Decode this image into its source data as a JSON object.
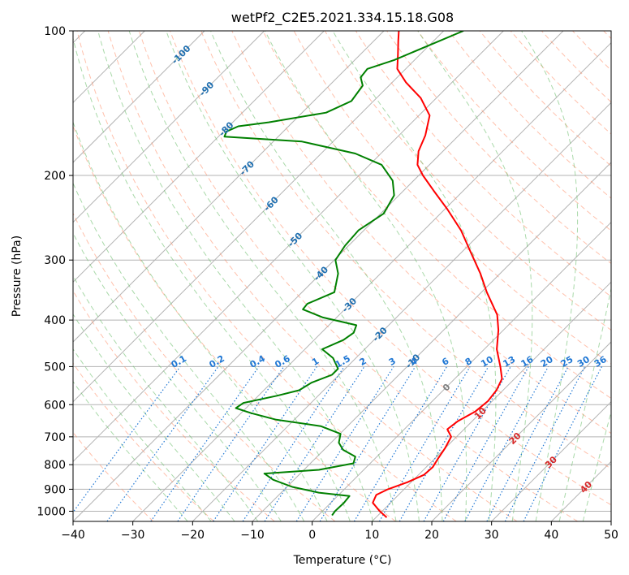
{
  "chart_data": {
    "type": "line",
    "subtype": "skew-t log-p diagram",
    "title": "wetPf2_C2E5.2021.334.15.18.G08",
    "xlabel": "Temperature (°C)",
    "ylabel": "Pressure (hPa)",
    "xlim": [
      -40,
      50
    ],
    "ylim": [
      1050,
      100
    ],
    "grid": true,
    "x_ticks": [
      -40,
      -30,
      -20,
      -10,
      0,
      10,
      20,
      30,
      40,
      50
    ],
    "x_tick_labels": [
      "−40",
      "−30",
      "−20",
      "−10",
      "0",
      "10",
      "20",
      "30",
      "40",
      "50"
    ],
    "y_ticks": [
      1000,
      900,
      800,
      700,
      600,
      500,
      400,
      300,
      200,
      100
    ],
    "y_tick_labels": [
      "1000",
      "900",
      "800",
      "700",
      "600",
      "500",
      "400",
      "300",
      "200",
      "100"
    ],
    "series": [
      {
        "name": "temperature",
        "color": "#ff0000",
        "points": [
          {
            "p": 1030,
            "t": 11.8
          },
          {
            "p": 1000,
            "t": 9.6
          },
          {
            "p": 960,
            "t": 7.0
          },
          {
            "p": 925,
            "t": 6.3
          },
          {
            "p": 900,
            "t": 7.3
          },
          {
            "p": 870,
            "t": 9.4
          },
          {
            "p": 840,
            "t": 10.9
          },
          {
            "p": 810,
            "t": 11.1
          },
          {
            "p": 780,
            "t": 10.6
          },
          {
            "p": 740,
            "t": 10.0
          },
          {
            "p": 700,
            "t": 9.1
          },
          {
            "p": 675,
            "t": 7.2
          },
          {
            "p": 650,
            "t": 7.6
          },
          {
            "p": 620,
            "t": 8.9
          },
          {
            "p": 590,
            "t": 9.3
          },
          {
            "p": 560,
            "t": 8.9
          },
          {
            "p": 530,
            "t": 7.9
          },
          {
            "p": 500,
            "t": 5.6
          },
          {
            "p": 460,
            "t": 2.1
          },
          {
            "p": 420,
            "t": -0.8
          },
          {
            "p": 390,
            "t": -3.6
          },
          {
            "p": 350,
            "t": -9.1
          },
          {
            "p": 320,
            "t": -13.3
          },
          {
            "p": 290,
            "t": -18.3
          },
          {
            "p": 260,
            "t": -23.8
          },
          {
            "p": 235,
            "t": -29.6
          },
          {
            "p": 215,
            "t": -35.0
          },
          {
            "p": 200,
            "t": -39.3
          },
          {
            "p": 190,
            "t": -42.0
          },
          {
            "p": 178,
            "t": -44.1
          },
          {
            "p": 165,
            "t": -45.6
          },
          {
            "p": 150,
            "t": -48.2
          },
          {
            "p": 138,
            "t": -52.6
          },
          {
            "p": 128,
            "t": -57.7
          },
          {
            "p": 120,
            "t": -61.4
          },
          {
            "p": 112,
            "t": -63.7
          },
          {
            "p": 105,
            "t": -65.9
          },
          {
            "p": 100,
            "t": -67.5
          }
        ]
      },
      {
        "name": "dewpoint",
        "color": "#008000",
        "points": [
          {
            "p": 1020,
            "t": 2.3
          },
          {
            "p": 1000,
            "t": 2.1
          },
          {
            "p": 960,
            "t": 2.2
          },
          {
            "p": 930,
            "t": 2.0
          },
          {
            "p": 915,
            "t": -3.7
          },
          {
            "p": 890,
            "t": -9.1
          },
          {
            "p": 860,
            "t": -13.5
          },
          {
            "p": 835,
            "t": -16.0
          },
          {
            "p": 820,
            "t": -7.5
          },
          {
            "p": 795,
            "t": -2.8
          },
          {
            "p": 770,
            "t": -3.6
          },
          {
            "p": 745,
            "t": -6.8
          },
          {
            "p": 720,
            "t": -8.7
          },
          {
            "p": 690,
            "t": -9.9
          },
          {
            "p": 665,
            "t": -14.5
          },
          {
            "p": 645,
            "t": -23.0
          },
          {
            "p": 625,
            "t": -28.3
          },
          {
            "p": 610,
            "t": -31.7
          },
          {
            "p": 595,
            "t": -31.3
          },
          {
            "p": 575,
            "t": -26.9
          },
          {
            "p": 560,
            "t": -24.1
          },
          {
            "p": 540,
            "t": -23.3
          },
          {
            "p": 520,
            "t": -21.2
          },
          {
            "p": 505,
            "t": -21.2
          },
          {
            "p": 480,
            "t": -23.8
          },
          {
            "p": 460,
            "t": -27.1
          },
          {
            "p": 440,
            "t": -25.1
          },
          {
            "p": 425,
            "t": -24.6
          },
          {
            "p": 410,
            "t": -25.4
          },
          {
            "p": 395,
            "t": -32.3
          },
          {
            "p": 380,
            "t": -37.0
          },
          {
            "p": 370,
            "t": -37.2
          },
          {
            "p": 350,
            "t": -34.6
          },
          {
            "p": 320,
            "t": -37.1
          },
          {
            "p": 300,
            "t": -39.8
          },
          {
            "p": 280,
            "t": -40.6
          },
          {
            "p": 260,
            "t": -40.9
          },
          {
            "p": 240,
            "t": -39.5
          },
          {
            "p": 220,
            "t": -40.8
          },
          {
            "p": 205,
            "t": -43.5
          },
          {
            "p": 190,
            "t": -48.0
          },
          {
            "p": 180,
            "t": -54.3
          },
          {
            "p": 170,
            "t": -65.2
          },
          {
            "p": 166,
            "t": -79.0
          },
          {
            "p": 162,
            "t": -79.5
          },
          {
            "p": 158,
            "t": -78.4
          },
          {
            "p": 155,
            "t": -74.0
          },
          {
            "p": 148,
            "t": -66.0
          },
          {
            "p": 140,
            "t": -63.7
          },
          {
            "p": 130,
            "t": -64.4
          },
          {
            "p": 125,
            "t": -66.1
          },
          {
            "p": 120,
            "t": -66.4
          },
          {
            "p": 115,
            "t": -63.4
          },
          {
            "p": 100,
            "t": -56.7
          }
        ]
      }
    ],
    "reference_lines": {
      "isotherm_color": "#b3b3b3",
      "dry_adiabat_color": "#ff8c66",
      "moist_adiabat_color": "#6fbf6f",
      "mixing_ratio_color": "#1f77d4"
    },
    "isotherm_labels": [
      {
        "value": -100,
        "p": 112
      },
      {
        "value": -90,
        "p": 132
      },
      {
        "value": -80,
        "p": 160
      },
      {
        "value": -70,
        "p": 193
      },
      {
        "value": -60,
        "p": 229
      },
      {
        "value": -50,
        "p": 272
      },
      {
        "value": -40,
        "p": 320
      },
      {
        "value": -30,
        "p": 372
      },
      {
        "value": -20,
        "p": 428
      },
      {
        "value": -10,
        "p": 487
      },
      {
        "value": 0,
        "p": 552
      },
      {
        "value": 10,
        "p": 625
      },
      {
        "value": 20,
        "p": 705
      },
      {
        "value": 30,
        "p": 790
      },
      {
        "value": 40,
        "p": 890
      }
    ],
    "isotherm_label_text": [
      "-100",
      "-90",
      "-80",
      "-70",
      "-60",
      "-50",
      "-40",
      "-30",
      "-20",
      "-10",
      "0",
      "10",
      "20",
      "30",
      "40"
    ],
    "mixing_ratios_gkg": [
      0.1,
      0.2,
      0.4,
      0.6,
      1,
      1.5,
      2,
      3,
      4,
      6,
      8,
      10,
      13,
      16,
      20,
      25,
      30,
      36
    ],
    "mixing_ratio_label_text": [
      "0.1",
      "0.2",
      "0.4",
      "0.6",
      "1",
      "1.5",
      "2",
      "3",
      "4",
      "6",
      "8",
      "10",
      "13",
      "16",
      "20",
      "25",
      "30",
      "36"
    ],
    "mixing_ratio_top_p": 500
  }
}
